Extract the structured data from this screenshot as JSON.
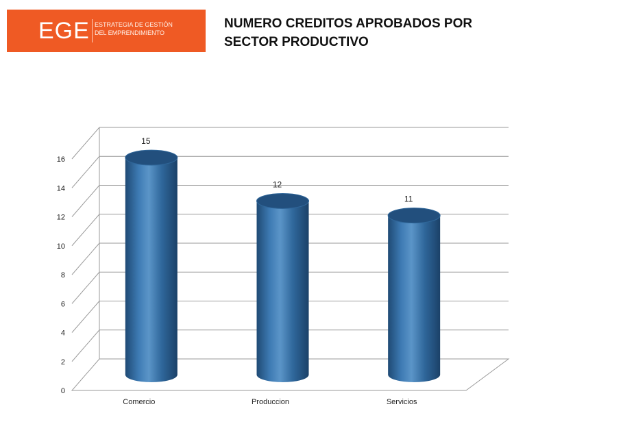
{
  "logo": {
    "mark": "EGE",
    "tagline_line1": "ESTRATEGIA DE GESTIÓN",
    "tagline_line2": "DEL EMPRENDIMIENTO"
  },
  "title": {
    "line1": "NUMERO  CREDITOS APROBADOS  POR",
    "line2": "SECTOR PRODUCTIVO"
  },
  "chart_data": {
    "type": "bar",
    "style": "3d-cylinder",
    "categories": [
      "Comercio",
      "Produccion",
      "Servicios"
    ],
    "values": [
      15,
      12,
      11
    ],
    "data_labels": [
      "15",
      "12",
      "11"
    ],
    "ylim": [
      0,
      16
    ],
    "yticks": [
      0,
      2,
      4,
      6,
      8,
      10,
      12,
      14,
      16
    ],
    "grid": true,
    "legend": "none",
    "colors": {
      "bar": "#2c6498",
      "bar_light": "#5b95c8",
      "bar_dark": "#1d4870",
      "bar_top": "#224f7d",
      "grid": "#9a9a9a"
    }
  }
}
